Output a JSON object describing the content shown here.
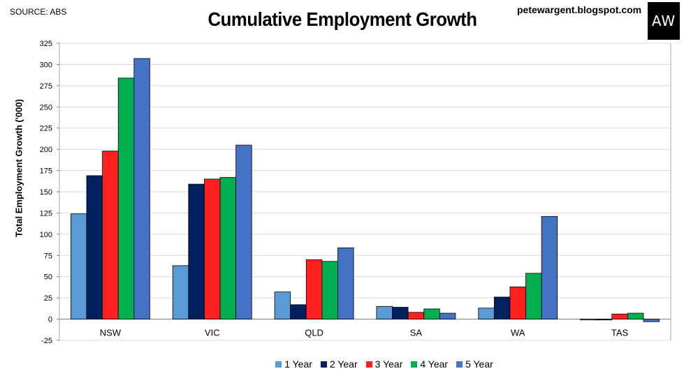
{
  "header": {
    "source": "SOURCE: ABS",
    "title": "Cumulative Employment Growth",
    "site": "petewargent.blogspot.com",
    "logo_text": "AW"
  },
  "chart_data": {
    "type": "bar",
    "title": "Cumulative Employment Growth",
    "xlabel": "",
    "ylabel": "Total Employment Growth ('000)",
    "categories": [
      "NSW",
      "VIC",
      "QLD",
      "SA",
      "WA",
      "TAS"
    ],
    "ylim": [
      -25,
      325
    ],
    "yticks": [
      -25,
      0,
      25,
      50,
      75,
      100,
      125,
      150,
      175,
      200,
      225,
      250,
      275,
      300,
      325
    ],
    "grid": true,
    "legend_position": "bottom",
    "series": [
      {
        "name": "1 Year",
        "color": "#5B9BD5",
        "values": [
          124,
          63,
          32,
          15,
          13,
          -1
        ]
      },
      {
        "name": "2 Year",
        "color": "#002060",
        "values": [
          169,
          159,
          17,
          14,
          26,
          -1
        ]
      },
      {
        "name": "3 Year",
        "color": "#FF2020",
        "values": [
          198,
          165,
          70,
          8,
          38,
          6
        ]
      },
      {
        "name": "4 Year",
        "color": "#00B050",
        "values": [
          284,
          167,
          68,
          12,
          54,
          7
        ]
      },
      {
        "name": "5 Year",
        "color": "#4472C4",
        "values": [
          307,
          205,
          84,
          7,
          121,
          -3
        ]
      }
    ]
  }
}
